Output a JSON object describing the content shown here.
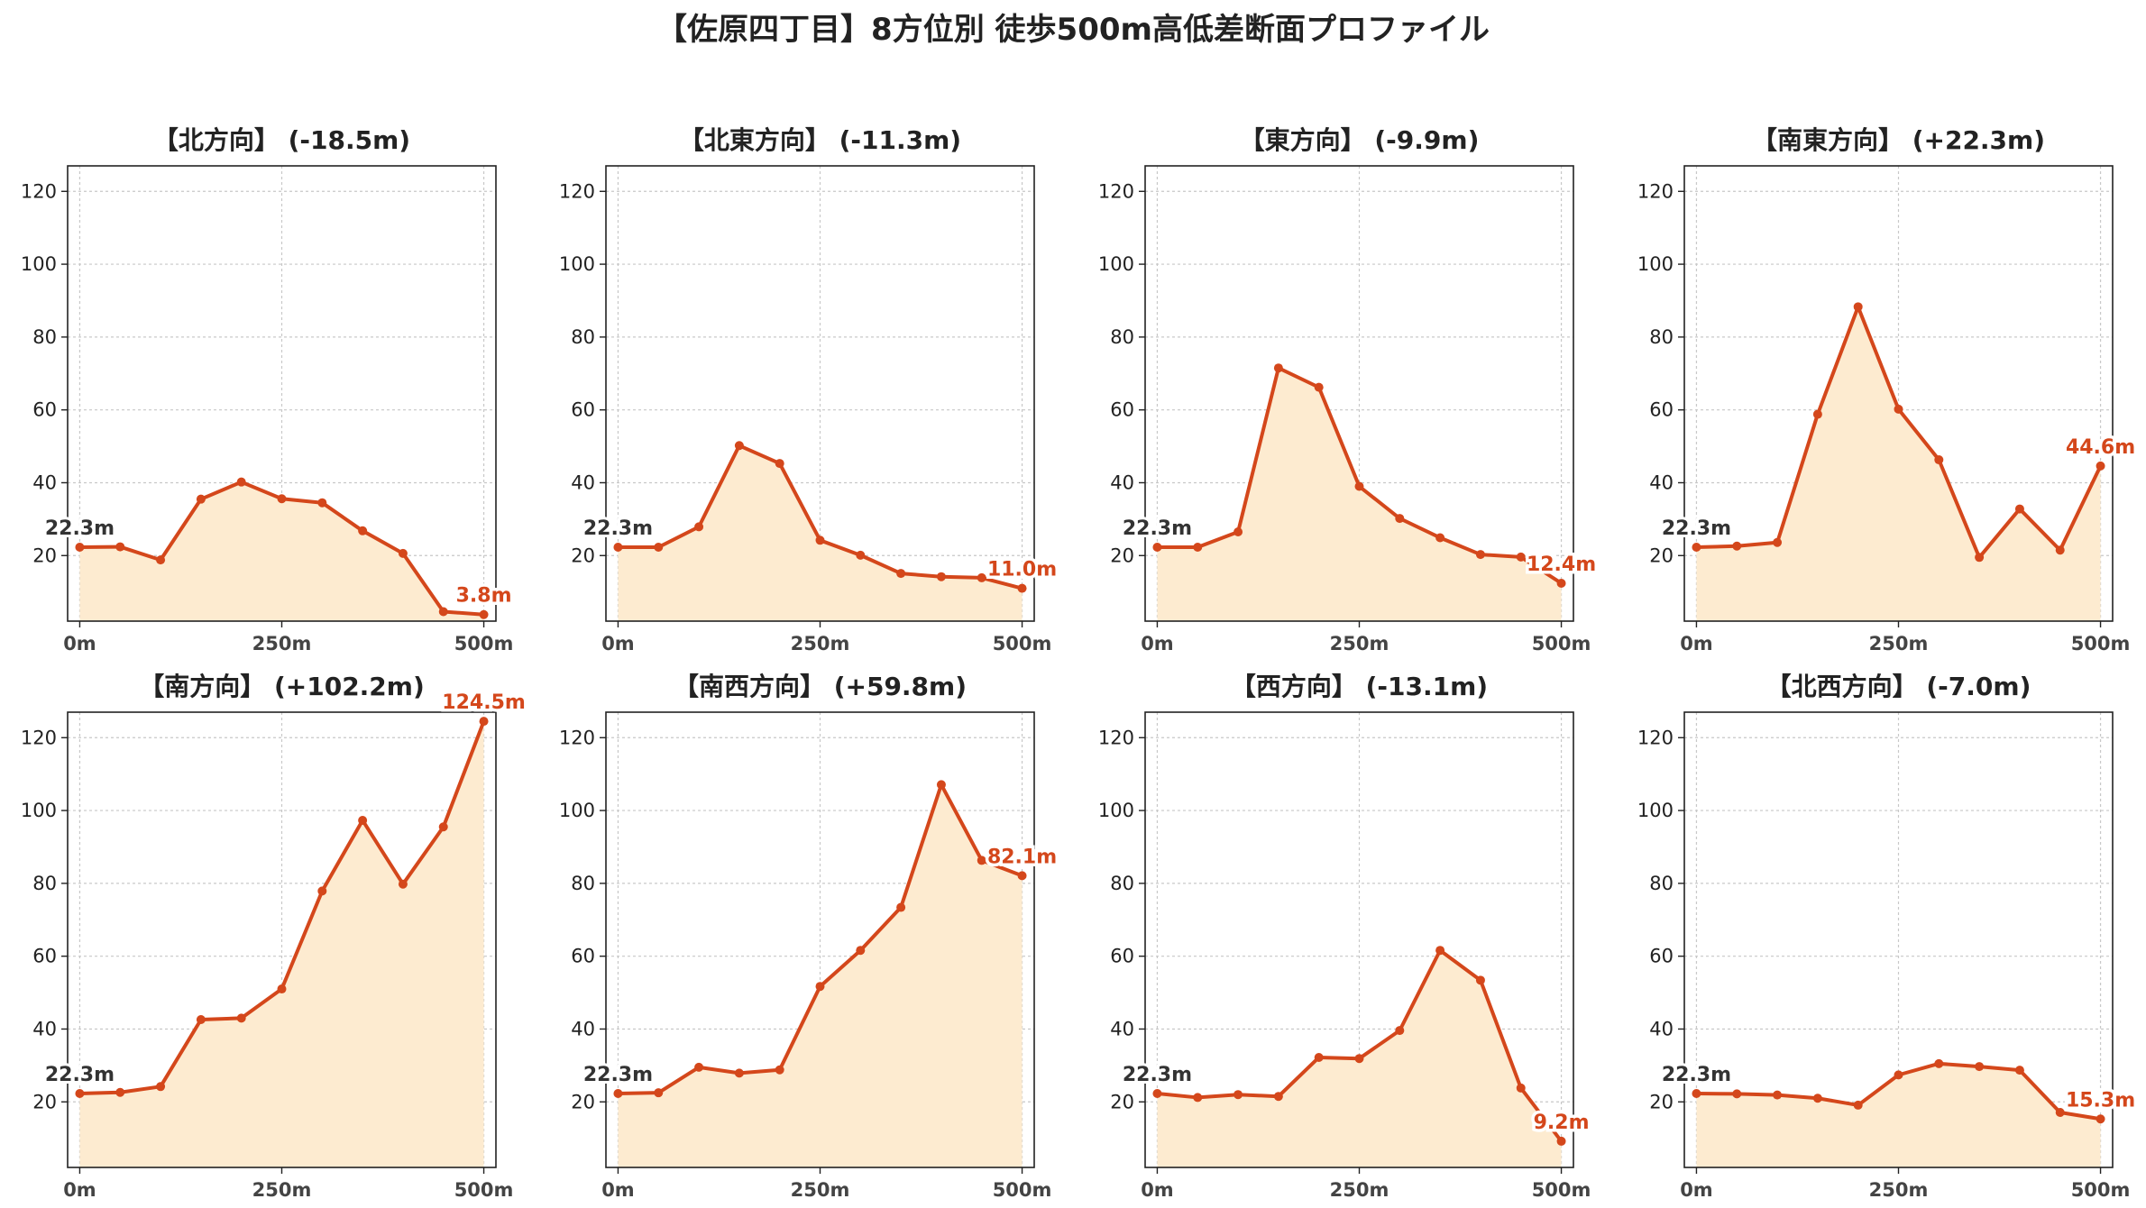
{
  "figure_title": "【佐原四丁目】8方位別 徒歩500m高低差断面プロファイル",
  "colors": {
    "line": "#d4471b",
    "fill": "#fdebd0",
    "grid": "#c8c8c8",
    "axis": "#222222",
    "start_label": "#333333",
    "end_label": "#d4471b"
  },
  "chart_data": [
    {
      "type": "area",
      "title": "【北方向】 (-18.5m)",
      "x": [
        0,
        50,
        100,
        150,
        200,
        250,
        300,
        350,
        400,
        450,
        500
      ],
      "values": [
        22.3,
        22.4,
        18.8,
        35.5,
        40.2,
        35.6,
        34.5,
        26.8,
        20.6,
        4.6,
        3.8
      ],
      "start_label": "22.3m",
      "end_label": "3.8m",
      "xticks": [
        "0m",
        "250m",
        "500m"
      ],
      "yticks": [
        20,
        40,
        60,
        80,
        100,
        120
      ],
      "xlim": [
        -15,
        515
      ],
      "ylim": [
        2,
        127
      ],
      "grid": true
    },
    {
      "type": "area",
      "title": "【北東方向】 (-11.3m)",
      "x": [
        0,
        50,
        100,
        150,
        200,
        250,
        300,
        350,
        400,
        450,
        500
      ],
      "values": [
        22.3,
        22.3,
        27.9,
        50.2,
        45.3,
        24.2,
        20.1,
        15.1,
        14.2,
        13.9,
        11.0
      ],
      "start_label": "22.3m",
      "end_label": "11.0m",
      "xticks": [
        "0m",
        "250m",
        "500m"
      ],
      "yticks": [
        20,
        40,
        60,
        80,
        100,
        120
      ],
      "xlim": [
        -15,
        515
      ],
      "ylim": [
        2,
        127
      ],
      "grid": true
    },
    {
      "type": "area",
      "title": "【東方向】 (-9.9m)",
      "x": [
        0,
        50,
        100,
        150,
        200,
        250,
        300,
        350,
        400,
        450,
        500
      ],
      "values": [
        22.3,
        22.3,
        26.5,
        71.5,
        66.2,
        39.0,
        30.2,
        24.9,
        20.3,
        19.6,
        12.4
      ],
      "start_label": "22.3m",
      "end_label": "12.4m",
      "xticks": [
        "0m",
        "250m",
        "500m"
      ],
      "yticks": [
        20,
        40,
        60,
        80,
        100,
        120
      ],
      "xlim": [
        -15,
        515
      ],
      "ylim": [
        2,
        127
      ],
      "grid": true
    },
    {
      "type": "area",
      "title": "【南東方向】 (+22.3m)",
      "x": [
        0,
        50,
        100,
        150,
        200,
        250,
        300,
        350,
        400,
        450,
        500
      ],
      "values": [
        22.3,
        22.6,
        23.6,
        58.8,
        88.3,
        60.2,
        46.3,
        19.5,
        32.8,
        21.5,
        44.6
      ],
      "start_label": "22.3m",
      "end_label": "44.6m",
      "xticks": [
        "0m",
        "250m",
        "500m"
      ],
      "yticks": [
        20,
        40,
        60,
        80,
        100,
        120
      ],
      "xlim": [
        -15,
        515
      ],
      "ylim": [
        2,
        127
      ],
      "grid": true
    },
    {
      "type": "area",
      "title": "【南方向】 (+102.2m)",
      "x": [
        0,
        50,
        100,
        150,
        200,
        250,
        300,
        350,
        400,
        450,
        500
      ],
      "values": [
        22.3,
        22.6,
        24.2,
        42.6,
        43.0,
        51.0,
        77.9,
        97.3,
        79.8,
        95.5,
        124.5
      ],
      "start_label": "22.3m",
      "end_label": "124.5m",
      "xticks": [
        "0m",
        "250m",
        "500m"
      ],
      "yticks": [
        20,
        40,
        60,
        80,
        100,
        120
      ],
      "xlim": [
        -15,
        515
      ],
      "ylim": [
        2,
        127
      ],
      "grid": true
    },
    {
      "type": "area",
      "title": "【南西方向】 (+59.8m)",
      "x": [
        0,
        50,
        100,
        150,
        200,
        250,
        300,
        350,
        400,
        450,
        500
      ],
      "values": [
        22.3,
        22.5,
        29.5,
        27.9,
        28.8,
        51.7,
        61.6,
        73.4,
        107.1,
        86.3,
        82.1
      ],
      "start_label": "22.3m",
      "end_label": "82.1m",
      "xticks": [
        "0m",
        "250m",
        "500m"
      ],
      "yticks": [
        20,
        40,
        60,
        80,
        100,
        120
      ],
      "xlim": [
        -15,
        515
      ],
      "ylim": [
        2,
        127
      ],
      "grid": true
    },
    {
      "type": "area",
      "title": "【西方向】 (-13.1m)",
      "x": [
        0,
        50,
        100,
        150,
        200,
        250,
        300,
        350,
        400,
        450,
        500
      ],
      "values": [
        22.3,
        21.2,
        22.0,
        21.5,
        32.2,
        31.9,
        39.6,
        61.6,
        53.4,
        23.8,
        9.2
      ],
      "start_label": "22.3m",
      "end_label": "9.2m",
      "xticks": [
        "0m",
        "250m",
        "500m"
      ],
      "yticks": [
        20,
        40,
        60,
        80,
        100,
        120
      ],
      "xlim": [
        -15,
        515
      ],
      "ylim": [
        2,
        127
      ],
      "grid": true
    },
    {
      "type": "area",
      "title": "【北西方向】 (-7.0m)",
      "x": [
        0,
        50,
        100,
        150,
        200,
        250,
        300,
        350,
        400,
        450,
        500
      ],
      "values": [
        22.3,
        22.2,
        21.9,
        21.0,
        19.1,
        27.4,
        30.5,
        29.7,
        28.7,
        17.1,
        15.3
      ],
      "start_label": "22.3m",
      "end_label": "15.3m",
      "xticks": [
        "0m",
        "250m",
        "500m"
      ],
      "yticks": [
        20,
        40,
        60,
        80,
        100,
        120
      ],
      "xlim": [
        -15,
        515
      ],
      "ylim": [
        2,
        127
      ],
      "grid": true
    }
  ]
}
